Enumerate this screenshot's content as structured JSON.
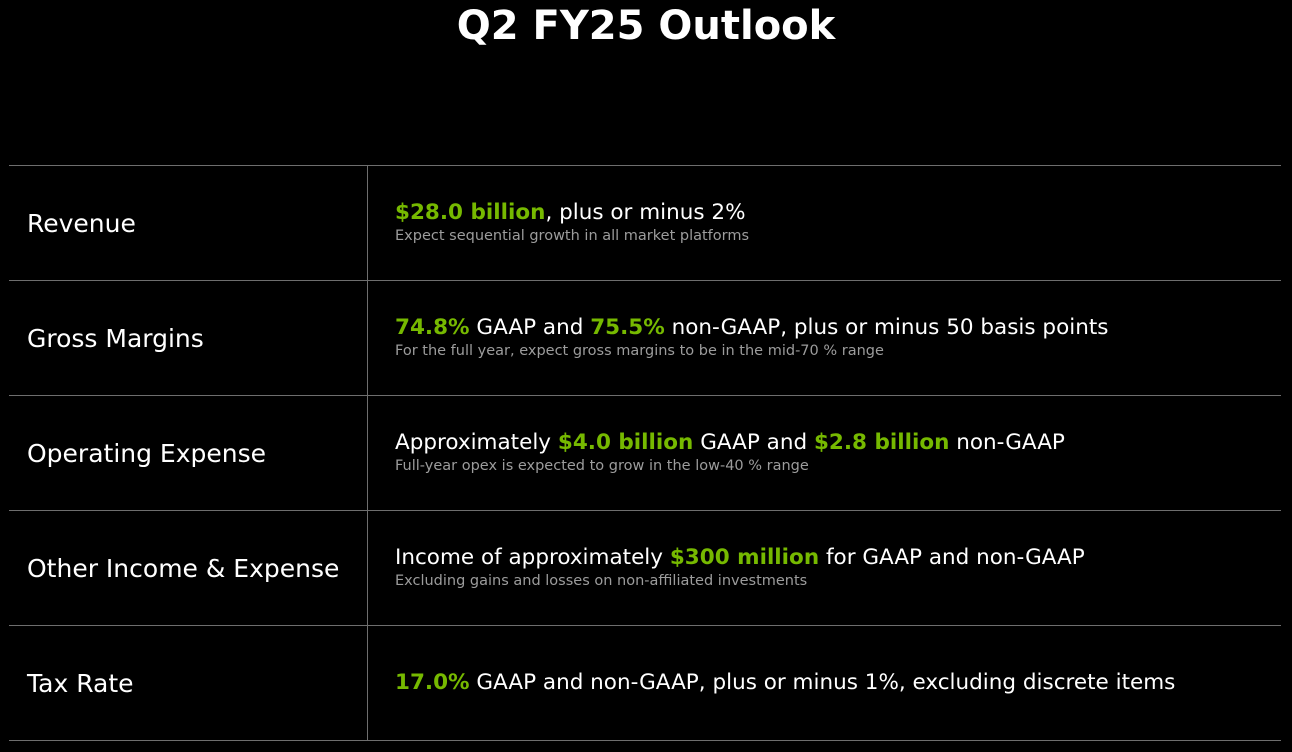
{
  "title": "Q2 FY25 Outlook",
  "accent_color": "#76b900",
  "rows": [
    {
      "label": "Revenue",
      "main": [
        {
          "text": "$28.0 billion",
          "highlight": true
        },
        {
          "text": ", plus or minus 2%",
          "highlight": false
        }
      ],
      "sub": "Expect sequential growth in all market platforms"
    },
    {
      "label": "Gross Margins",
      "main": [
        {
          "text": "74.8%",
          "highlight": true
        },
        {
          "text": " GAAP and ",
          "highlight": false
        },
        {
          "text": "75.5%",
          "highlight": true
        },
        {
          "text": " non-GAAP, plus or minus 50 basis points",
          "highlight": false
        }
      ],
      "sub": "For the full year, expect gross margins to be in the mid-70 % range"
    },
    {
      "label": "Operating Expense",
      "main": [
        {
          "text": "Approximately ",
          "highlight": false
        },
        {
          "text": "$4.0 billion",
          "highlight": true
        },
        {
          "text": " GAAP and ",
          "highlight": false
        },
        {
          "text": "$2.8 billion",
          "highlight": true
        },
        {
          "text": " non-GAAP",
          "highlight": false
        }
      ],
      "sub": "Full-year opex is expected to grow in the low-40 % range"
    },
    {
      "label": "Other Income & Expense",
      "main": [
        {
          "text": "Income of approximately ",
          "highlight": false
        },
        {
          "text": "$300 million",
          "highlight": true
        },
        {
          "text": " for GAAP and non-GAAP",
          "highlight": false
        }
      ],
      "sub": "Excluding gains and losses on non-affiliated investments"
    },
    {
      "label": "Tax Rate",
      "main": [
        {
          "text": "17.0%",
          "highlight": true
        },
        {
          "text": " GAAP and non-GAAP, plus or minus 1%, excluding discrete items",
          "highlight": false
        }
      ],
      "sub": ""
    }
  ]
}
